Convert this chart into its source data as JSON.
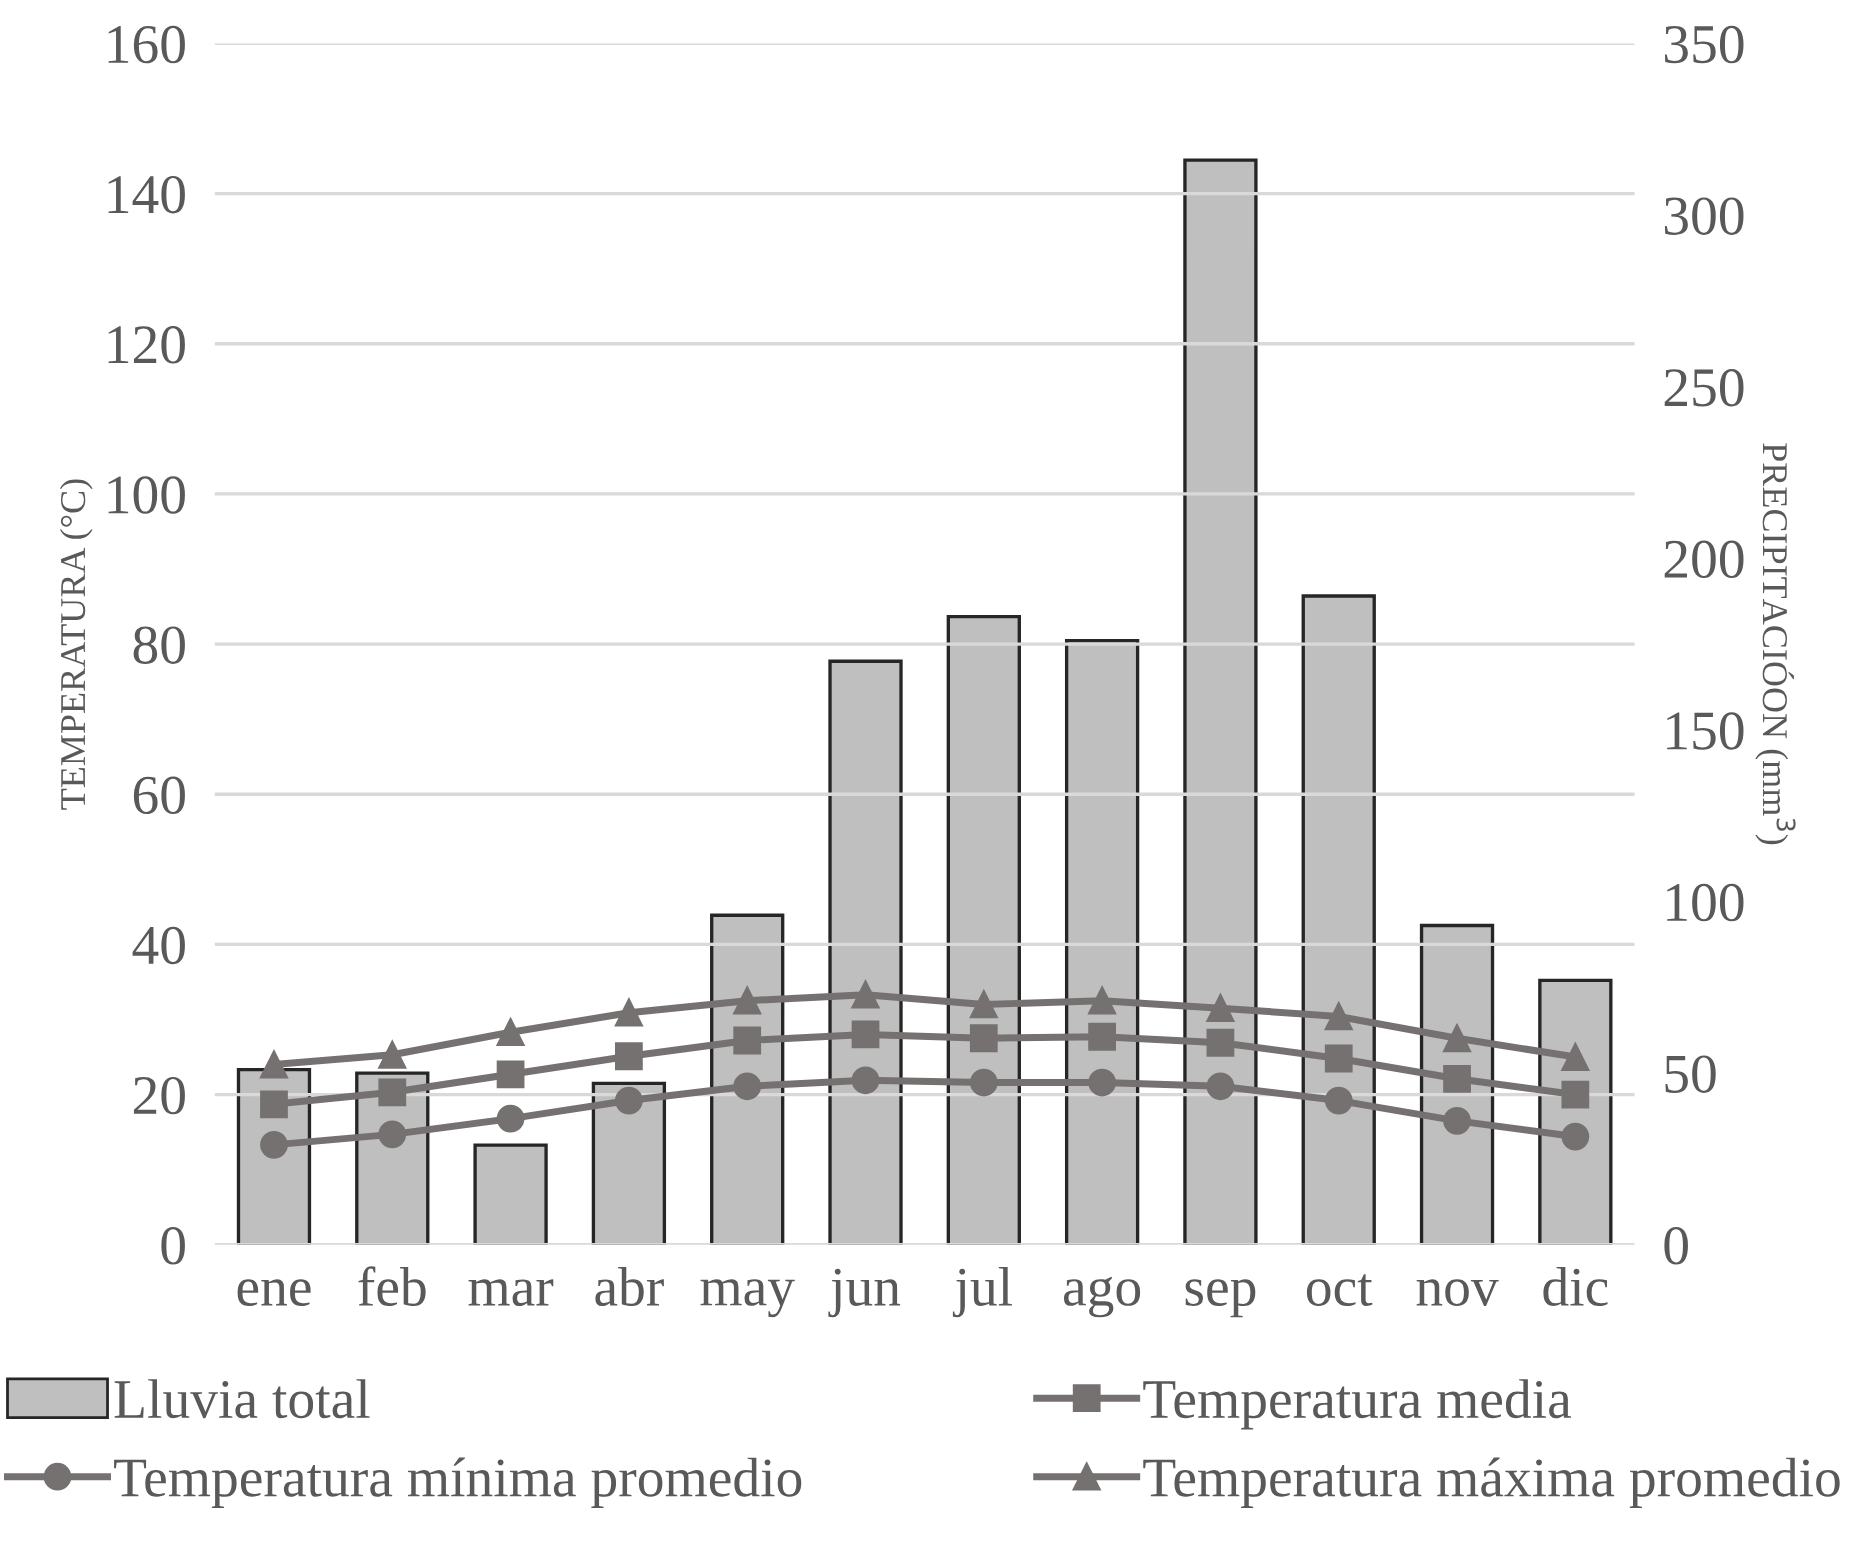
{
  "chart_data": {
    "type": "line",
    "ylabel": "TEMPERATURA (°C)",
    "y2label": "PRECIPITACIÓON (mm$^{3}$)",
    "categories": [
      "ene",
      "feb",
      "mar",
      "abr",
      "may",
      "jun",
      "jul",
      "ago",
      "sep",
      "oct",
      "nov",
      "dic"
    ],
    "series": [
      {
        "name": "Lluvia total",
        "type": "bar",
        "axis": "y2",
        "color": "#bfbfbf",
        "values": [
          51,
          50,
          29,
          47,
          96,
          170,
          183,
          176,
          316,
          189,
          93,
          77
        ]
      },
      {
        "name": "Temperatura media",
        "marker": "square",
        "color": "#767171",
        "values": [
          18.7,
          20.3,
          22.7,
          25.1,
          27.2,
          28,
          27.5,
          27.7,
          26.9,
          24.8,
          22.1,
          20
        ]
      },
      {
        "name": "Temperatura mínima promedio",
        "marker": "circle",
        "color": "#767171",
        "values": [
          13.3,
          14.7,
          16.8,
          19.2,
          21.1,
          21.9,
          21.6,
          21.6,
          21.1,
          19.2,
          16.5,
          14.4
        ]
      },
      {
        "name": "Temperatura máxima promedio",
        "marker": "triangle",
        "color": "#767171",
        "values": [
          24,
          25.3,
          28.3,
          30.9,
          32.5,
          33.3,
          32,
          32.5,
          31.5,
          30.4,
          27.5,
          25
        ]
      }
    ],
    "ylim": [
      0,
      160
    ],
    "yticks": [
      0,
      20,
      40,
      60,
      80,
      100,
      120,
      140,
      160
    ],
    "y2lim": [
      0,
      350
    ],
    "y2ticks": [
      0,
      50,
      100,
      150,
      200,
      250,
      300,
      350
    ],
    "grid": "y",
    "legend": "bottom",
    "line_style": "solid"
  }
}
